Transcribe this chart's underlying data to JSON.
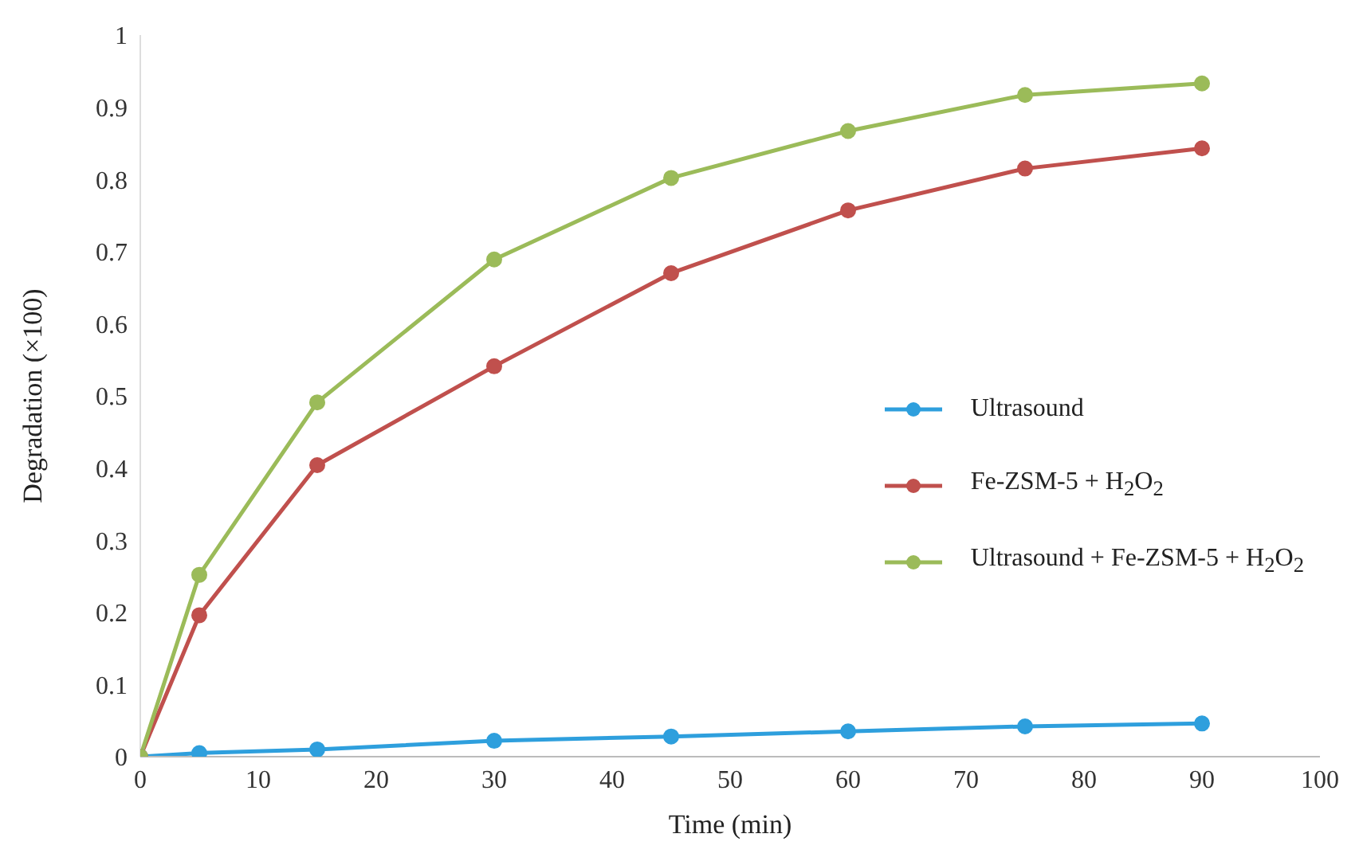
{
  "chart_data": {
    "type": "line",
    "xlabel": "Time (min)",
    "ylabel": "Degradation (×100)",
    "x": [
      0,
      5,
      15,
      30,
      45,
      60,
      75,
      90
    ],
    "series": [
      {
        "name": "Ultrasound",
        "color": "#2e9fdd",
        "values": [
          0,
          0.005,
          0.01,
          0.022,
          0.028,
          0.035,
          0.042,
          0.046
        ]
      },
      {
        "name": "Fe-ZSM-5 + H$_{2}$O$_{2}$",
        "color": "#c0504d",
        "values": [
          0,
          0.196,
          0.404,
          0.541,
          0.67,
          0.757,
          0.815,
          0.843
        ]
      },
      {
        "name": "Ultrasound + Fe-ZSM-5 + H$_{2}$O$_{2}$",
        "color": "#9bbb59",
        "values": [
          0,
          0.252,
          0.491,
          0.689,
          0.802,
          0.867,
          0.917,
          0.933
        ]
      }
    ],
    "xlim": [
      0,
      100
    ],
    "xticks": [
      0,
      10,
      20,
      30,
      40,
      50,
      60,
      70,
      80,
      90,
      100
    ],
    "ylim": [
      0,
      1
    ],
    "yticks": [
      0,
      0.1,
      0.2,
      0.3,
      0.4,
      0.5,
      0.6,
      0.7,
      0.8,
      0.9,
      1
    ],
    "grid": false,
    "legend": "right",
    "marker": "circle",
    "line_style": "solid"
  }
}
